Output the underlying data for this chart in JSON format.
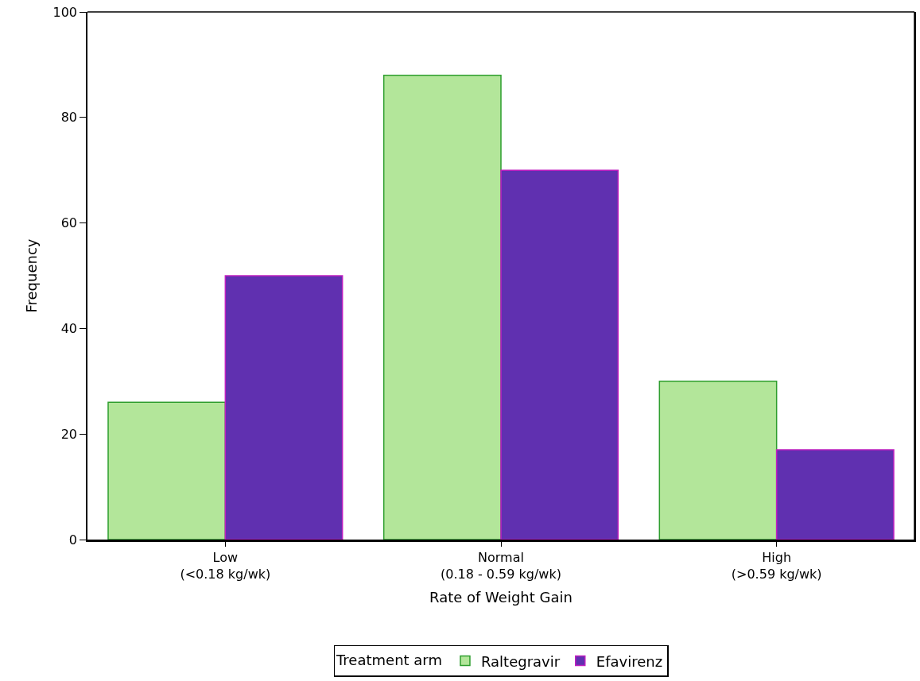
{
  "chart_data": {
    "type": "bar",
    "xlabel": "Rate of Weight Gain",
    "ylabel": "Frequency",
    "legend_title": "Treatment arm",
    "categories": [
      "Low\n(<0.18 kg/wk)",
      "Normal\n(0.18 - 0.59 kg/wk)",
      "High\n(>0.59 kg/wk)"
    ],
    "series": [
      {
        "name": "Raltegravir",
        "color": "#b3e69a",
        "values": [
          26,
          88,
          30
        ]
      },
      {
        "name": "Efavirenz",
        "color": "#6030b0",
        "values": [
          50,
          70,
          17
        ]
      }
    ],
    "ylim": [
      0,
      100
    ],
    "yticks": [
      0,
      20,
      40,
      60,
      80,
      100
    ],
    "legend": "bottom"
  }
}
